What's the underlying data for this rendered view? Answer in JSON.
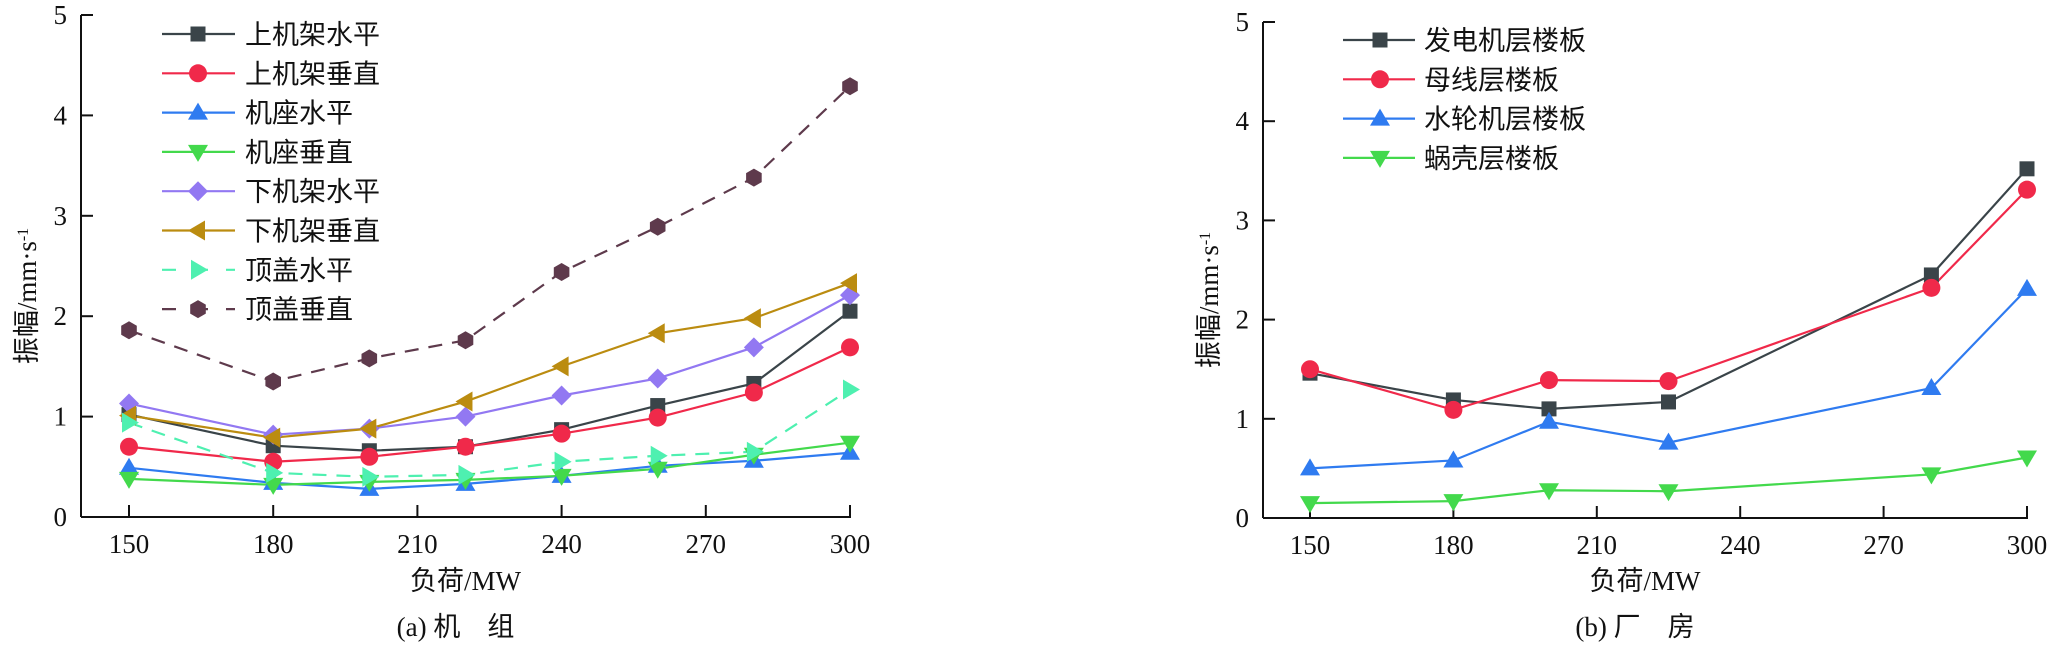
{
  "chart_data": [
    {
      "type": "line",
      "caption": "(a) 机　组",
      "xlabel": "负荷/MW",
      "ylabel": "振幅/mm·s",
      "ylabel_sup": "-1",
      "xlim": [
        140,
        300
      ],
      "ylim": [
        0,
        5
      ],
      "xticks": [
        150,
        180,
        210,
        240,
        270,
        300
      ],
      "yticks": [
        0,
        1,
        2,
        3,
        4,
        5
      ],
      "grid": false,
      "legend_position": "top-left",
      "x": [
        150,
        180,
        200,
        220,
        240,
        260,
        280,
        300
      ],
      "series": [
        {
          "name": "上机架水平",
          "color": "#3a4449",
          "marker": "square",
          "dash": false,
          "values": [
            1.02,
            0.71,
            0.66,
            0.7,
            0.87,
            1.11,
            1.33,
            2.05
          ]
        },
        {
          "name": "上机架垂直",
          "color": "#f0294a",
          "marker": "circle",
          "dash": false,
          "values": [
            0.7,
            0.55,
            0.6,
            0.7,
            0.83,
            0.99,
            1.24,
            1.69
          ]
        },
        {
          "name": "机座水平",
          "color": "#2f7bf0",
          "marker": "triangle-up",
          "dash": false,
          "values": [
            0.49,
            0.34,
            0.28,
            0.33,
            0.41,
            0.51,
            0.56,
            0.64
          ]
        },
        {
          "name": "机座垂直",
          "color": "#43d94c",
          "marker": "triangle-down",
          "dash": false,
          "values": [
            0.38,
            0.32,
            0.35,
            0.37,
            0.41,
            0.48,
            0.62,
            0.74
          ]
        },
        {
          "name": "下机架水平",
          "color": "#9278f2",
          "marker": "diamond",
          "dash": false,
          "values": [
            1.13,
            0.82,
            0.88,
            1.0,
            1.21,
            1.38,
            1.69,
            2.21
          ]
        },
        {
          "name": "下机架垂直",
          "color": "#bb8c10",
          "marker": "triangle-left",
          "dash": false,
          "values": [
            1.01,
            0.79,
            0.88,
            1.15,
            1.5,
            1.83,
            1.98,
            2.33
          ]
        },
        {
          "name": "顶盖水平",
          "color": "#4ef0b0",
          "marker": "triangle-right",
          "dash": true,
          "values": [
            0.94,
            0.44,
            0.4,
            0.42,
            0.55,
            0.61,
            0.65,
            1.27
          ]
        },
        {
          "name": "顶盖垂直",
          "color": "#5e3a4c",
          "marker": "hexagon",
          "dash": true,
          "values": [
            1.86,
            1.35,
            1.58,
            1.76,
            2.44,
            2.89,
            3.38,
            4.29
          ]
        }
      ]
    },
    {
      "type": "line",
      "caption": "(b) 厂　房",
      "xlabel": "负荷/MW",
      "ylabel": "振幅/mm·s",
      "ylabel_sup": "-1",
      "xlim": [
        140,
        300
      ],
      "ylim": [
        0,
        5
      ],
      "xticks": [
        150,
        180,
        210,
        240,
        270,
        300
      ],
      "yticks": [
        0,
        1,
        2,
        3,
        4,
        5
      ],
      "grid": false,
      "legend_position": "top-left",
      "x": [
        150,
        180,
        200,
        225,
        280,
        300
      ],
      "series": [
        {
          "name": "发电机层楼板",
          "color": "#3a4449",
          "marker": "square",
          "dash": false,
          "values": [
            1.46,
            1.19,
            1.1,
            1.17,
            2.45,
            3.52
          ]
        },
        {
          "name": "母线层楼板",
          "color": "#f0294a",
          "marker": "circle",
          "dash": false,
          "values": [
            1.5,
            1.09,
            1.39,
            1.38,
            2.32,
            3.31
          ]
        },
        {
          "name": "水轮机层楼板",
          "color": "#2f7bf0",
          "marker": "triangle-up",
          "dash": false,
          "values": [
            0.5,
            0.58,
            0.97,
            0.76,
            1.31,
            2.31
          ]
        },
        {
          "name": "蜗壳层楼板",
          "color": "#43d94c",
          "marker": "triangle-down",
          "dash": false,
          "values": [
            0.15,
            0.17,
            0.28,
            0.27,
            0.44,
            0.61
          ]
        }
      ]
    }
  ]
}
